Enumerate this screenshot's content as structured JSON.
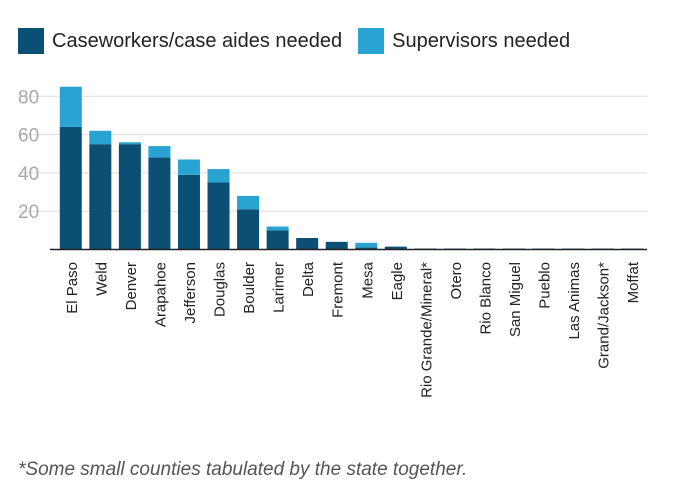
{
  "legend": {
    "caseworkers_label": "Caseworkers/case aides needed",
    "supervisors_label": "Supervisors needed"
  },
  "colors": {
    "caseworkers": "#0b4f74",
    "supervisors": "#29a3d2",
    "grid": "#dddddd",
    "axis": "#222222",
    "tick": "#a9a9a9"
  },
  "footnote": "*Some small counties tabulated by the state together.",
  "chart_data": {
    "type": "bar",
    "stacked": true,
    "categories": [
      "El Paso",
      "Weld",
      "Denver",
      "Arapahoe",
      "Jefferson",
      "Douglas",
      "Boulder",
      "Larimer",
      "Delta",
      "Fremont",
      "Mesa",
      "Eagle",
      "Rio Grande/Mineral*",
      "Otero",
      "Rio Blanco",
      "San Miguel",
      "Pueblo",
      "Las Animas",
      "Grand/Jackson*",
      "Moffat"
    ],
    "series": [
      {
        "name": "Caseworkers/case aides needed",
        "values": [
          64,
          55,
          55,
          48,
          39,
          35,
          21,
          10,
          6,
          4,
          1,
          1.5,
          0.5,
          0.5,
          0.5,
          0.5,
          0.5,
          0.5,
          0.5,
          0.5
        ]
      },
      {
        "name": "Supervisors needed",
        "values": [
          21,
          7,
          1,
          6,
          8,
          7,
          7,
          2,
          0,
          0,
          2.5,
          0,
          0,
          0,
          0,
          0,
          0,
          0,
          0,
          0
        ]
      }
    ],
    "yticks": [
      20,
      40,
      60,
      80
    ],
    "ylim": [
      0,
      90
    ],
    "grid": true,
    "legend_position": "top-left"
  }
}
